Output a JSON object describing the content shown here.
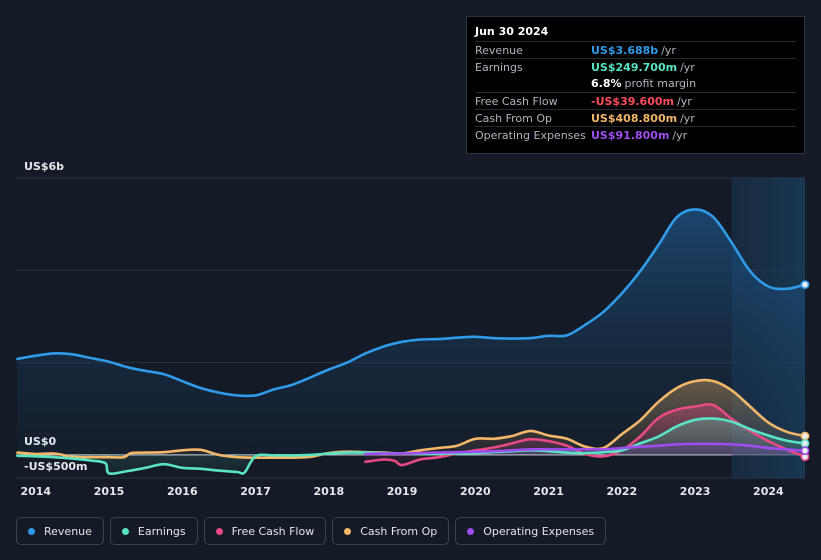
{
  "tooltip": {
    "date": "Jun 30 2024",
    "rows": [
      {
        "name": "Revenue",
        "value": "US$3.688b",
        "suffix": "/yr",
        "color": "#2f9be9"
      },
      {
        "name": "Earnings",
        "value": "US$249.700m",
        "suffix": "/yr",
        "color": "#59e3c3"
      },
      {
        "name": "",
        "value": "6.8%",
        "suffix": "profit margin",
        "color": "#ffffff"
      },
      {
        "name": "Free Cash Flow",
        "value": "-US$39.600m",
        "suffix": "/yr",
        "color": "#ff4b5c"
      },
      {
        "name": "Cash From Op",
        "value": "US$408.800m",
        "suffix": "/yr",
        "color": "#f3b76a"
      },
      {
        "name": "Operating Expenses",
        "value": "US$91.800m",
        "suffix": "/yr",
        "color": "#a04df0"
      }
    ]
  },
  "chart_data": {
    "type": "line",
    "title": "",
    "xlabel": "",
    "ylabel": "",
    "y_top_label": "US$6b",
    "y_zero_label": "US$0",
    "y_neg_label": "-US$500m",
    "ylim": [
      -500,
      6000
    ],
    "xlim": [
      2013.73,
      2024.5
    ],
    "x_ticks": [
      "2014",
      "2015",
      "2016",
      "2017",
      "2018",
      "2019",
      "2020",
      "2021",
      "2022",
      "2023",
      "2024"
    ],
    "forecast_start": 2023.5,
    "series": [
      {
        "name": "Revenue",
        "color": "#2f9be9",
        "x": [
          2013.75,
          2014.0,
          2014.25,
          2014.5,
          2014.75,
          2015.0,
          2015.25,
          2015.5,
          2015.75,
          2016.0,
          2016.25,
          2016.5,
          2016.75,
          2017.0,
          2017.25,
          2017.5,
          2017.75,
          2018.0,
          2018.25,
          2018.5,
          2018.75,
          2019.0,
          2019.25,
          2019.5,
          2019.75,
          2020.0,
          2020.25,
          2020.5,
          2020.75,
          2021.0,
          2021.25,
          2021.5,
          2021.75,
          2022.0,
          2022.25,
          2022.5,
          2022.75,
          2023.0,
          2023.25,
          2023.5,
          2023.75,
          2024.0,
          2024.25,
          2024.5
        ],
        "y": [
          2080,
          2150,
          2200,
          2180,
          2100,
          2020,
          1900,
          1820,
          1750,
          1600,
          1450,
          1350,
          1290,
          1290,
          1420,
          1520,
          1680,
          1850,
          2000,
          2200,
          2350,
          2450,
          2500,
          2510,
          2540,
          2560,
          2530,
          2520,
          2530,
          2580,
          2590,
          2820,
          3100,
          3500,
          3980,
          4550,
          5150,
          5320,
          5150,
          4600,
          3980,
          3650,
          3600,
          3690
        ]
      },
      {
        "name": "Earnings",
        "color": "#59e3c3",
        "x": [
          2013.75,
          2014.0,
          2014.25,
          2014.5,
          2014.75,
          2014.95,
          2015.0,
          2015.25,
          2015.5,
          2015.75,
          2016.0,
          2016.25,
          2016.5,
          2016.75,
          2016.85,
          2017.0,
          2017.25,
          2017.5,
          2017.75,
          2018.0,
          2018.25,
          2018.5,
          2018.75,
          2019.0,
          2019.25,
          2019.5,
          2019.75,
          2020.0,
          2020.25,
          2020.5,
          2020.75,
          2021.0,
          2021.25,
          2021.5,
          2021.75,
          2022.0,
          2022.25,
          2022.5,
          2022.75,
          2023.0,
          2023.25,
          2023.5,
          2023.75,
          2024.0,
          2024.25,
          2024.5
        ],
        "y": [
          -20,
          -30,
          -50,
          -80,
          -120,
          -180,
          -400,
          -350,
          -280,
          -200,
          -280,
          -300,
          -340,
          -370,
          -380,
          -30,
          -10,
          -10,
          0,
          30,
          50,
          50,
          40,
          30,
          20,
          20,
          30,
          40,
          60,
          80,
          100,
          80,
          50,
          40,
          60,
          100,
          250,
          400,
          620,
          760,
          790,
          720,
          560,
          420,
          310,
          250
        ]
      },
      {
        "name": "Free Cash Flow",
        "color": "#e84a83",
        "x": [
          2018.5,
          2018.75,
          2018.9,
          2019.0,
          2019.25,
          2019.5,
          2019.75,
          2020.0,
          2020.25,
          2020.5,
          2020.75,
          2021.0,
          2021.25,
          2021.5,
          2021.75,
          2022.0,
          2022.25,
          2022.5,
          2022.75,
          2023.0,
          2023.25,
          2023.5,
          2023.75,
          2024.0,
          2024.25,
          2024.5
        ],
        "y": [
          -150,
          -100,
          -130,
          -220,
          -100,
          -50,
          30,
          100,
          160,
          250,
          340,
          300,
          200,
          20,
          -30,
          100,
          400,
          800,
          980,
          1050,
          1080,
          780,
          520,
          300,
          120,
          -40
        ]
      },
      {
        "name": "Cash From Op",
        "color": "#f3b76a",
        "x": [
          2013.75,
          2014.0,
          2014.25,
          2014.5,
          2014.75,
          2015.0,
          2015.2,
          2015.3,
          2015.5,
          2015.75,
          2016.0,
          2016.25,
          2016.5,
          2016.75,
          2017.0,
          2017.25,
          2017.5,
          2017.75,
          2018.0,
          2018.25,
          2018.5,
          2018.75,
          2019.0,
          2019.25,
          2019.5,
          2019.75,
          2020.0,
          2020.25,
          2020.5,
          2020.75,
          2021.0,
          2021.25,
          2021.5,
          2021.75,
          2022.0,
          2022.25,
          2022.5,
          2022.75,
          2023.0,
          2023.25,
          2023.5,
          2023.75,
          2024.0,
          2024.25,
          2024.5
        ],
        "y": [
          50,
          20,
          30,
          -40,
          -50,
          -50,
          -50,
          40,
          50,
          60,
          100,
          110,
          0,
          -50,
          -60,
          -60,
          -60,
          -40,
          40,
          70,
          60,
          50,
          30,
          100,
          150,
          200,
          350,
          350,
          410,
          520,
          420,
          350,
          180,
          150,
          450,
          750,
          1150,
          1450,
          1600,
          1600,
          1400,
          1050,
          700,
          500,
          409
        ]
      },
      {
        "name": "Operating Expenses",
        "color": "#a04df0",
        "x": [
          2018.5,
          2018.75,
          2019.0,
          2019.25,
          2019.5,
          2019.75,
          2020.0,
          2020.25,
          2020.5,
          2020.75,
          2021.0,
          2021.25,
          2021.5,
          2021.75,
          2022.0,
          2022.25,
          2022.5,
          2022.75,
          2023.0,
          2023.25,
          2023.5,
          2023.75,
          2024.0,
          2024.25,
          2024.5
        ],
        "y": [
          20,
          30,
          30,
          40,
          50,
          60,
          70,
          80,
          100,
          120,
          120,
          120,
          120,
          120,
          150,
          180,
          200,
          230,
          240,
          240,
          230,
          200,
          150,
          120,
          92
        ]
      }
    ]
  },
  "legend": [
    {
      "label": "Revenue",
      "color": "#2f9be9"
    },
    {
      "label": "Earnings",
      "color": "#59e3c3"
    },
    {
      "label": "Free Cash Flow",
      "color": "#e84a83"
    },
    {
      "label": "Cash From Op",
      "color": "#f3b76a"
    },
    {
      "label": "Operating Expenses",
      "color": "#a04df0"
    }
  ]
}
